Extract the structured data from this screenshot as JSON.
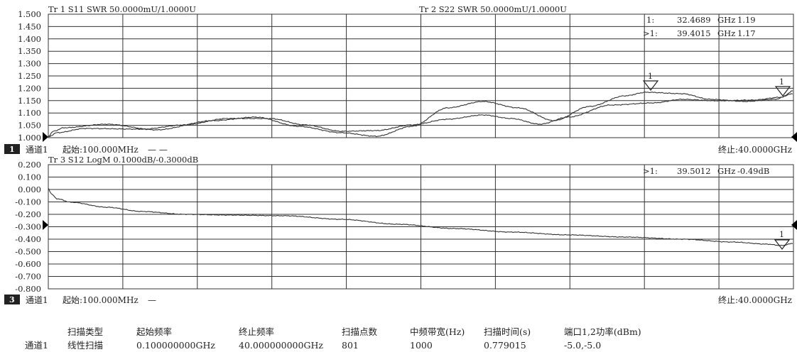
{
  "top_panel": {
    "trace1_header": "Tr 1  S11 SWR 50.0000mU/1.0000U",
    "trace2_header": "Tr 2  S22 SWR 50.0000mU/1.0000U",
    "y_ticks": [
      "1.500",
      "1.450",
      "1.400",
      "1.350",
      "1.300",
      "1.250",
      "1.200",
      "1.150",
      "1.100",
      "1.050",
      "1.000"
    ],
    "markers": [
      {
        "label": "1:",
        "freq": "32.4689",
        "unit": "GHz",
        "value": "1.19"
      },
      {
        "label": ">1:",
        "freq": "39.4015",
        "unit": "GHz",
        "value": "1.17"
      }
    ],
    "channel_badge": "1",
    "channel_text": "通道1",
    "start_text": "起始:100.000MHz",
    "trace_swatch": "— —",
    "stop_text": "终止:40.0000GHz",
    "marker1_label": "1",
    "marker2_label": "1"
  },
  "bottom_panel": {
    "trace3_header": "Tr 3  S12 LogM 0.1000dB/-0.3000dB",
    "y_ticks": [
      "0.200",
      "0.100",
      "0.000",
      "-0.100",
      "-0.200",
      "-0.300",
      "-0.400",
      "-0.500",
      "-0.600",
      "-0.700",
      "-0.800"
    ],
    "marker": {
      "label": ">1:",
      "freq": "39.5012",
      "unit": "GHz",
      "value": "-0.49dB"
    },
    "channel_badge": "3",
    "channel_text": "通道1",
    "start_text": "起始:100.000MHz",
    "trace_swatch": "—",
    "stop_text": "终止:40.0000GHz",
    "marker_label": "1"
  },
  "sweep_table": {
    "headers": [
      "扫描类型",
      "起始频率",
      "终止频率",
      "扫描点数",
      "中频带宽(Hz)",
      "扫描时间(s)",
      "端口1,2功率(dBm)"
    ],
    "row_label": "通道1",
    "values": [
      "线性扫描",
      "0.100000000GHz",
      "40.000000000GHz",
      "801",
      "1000",
      "0.779015",
      "-5.0,-5.0"
    ]
  },
  "colors": {
    "grid": "#333333",
    "trace": "#333333",
    "background": "#ffffff"
  }
}
